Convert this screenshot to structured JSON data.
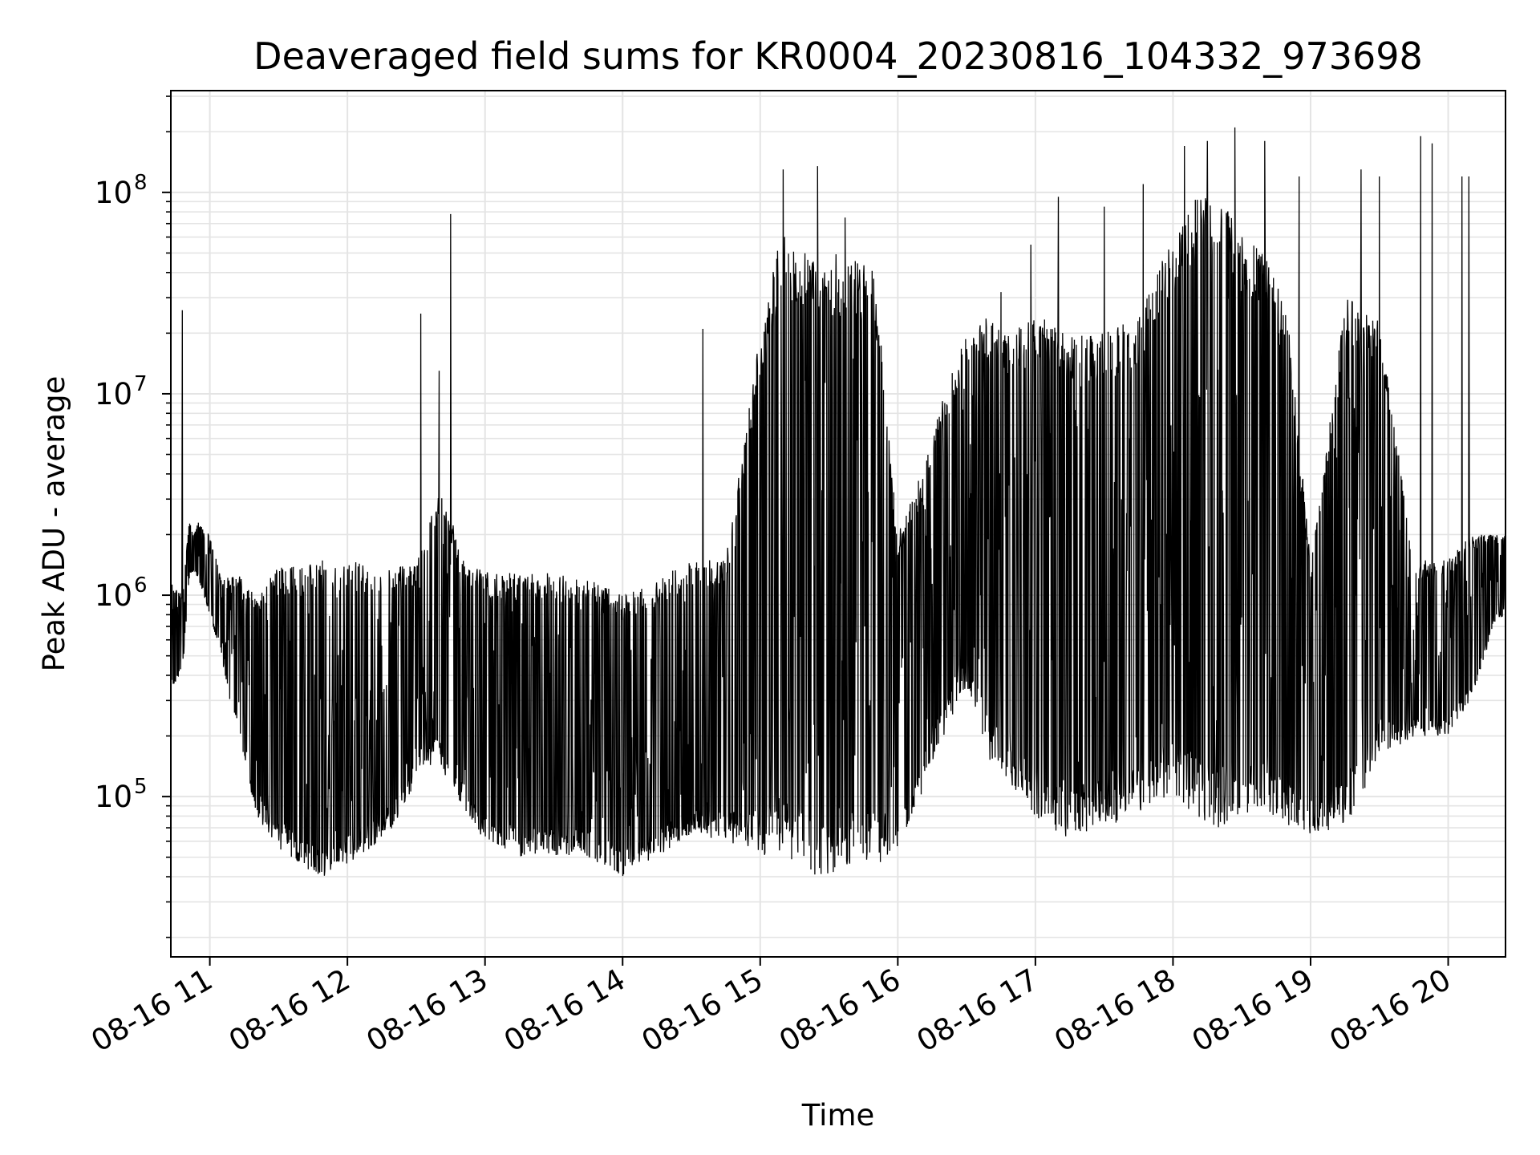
{
  "chart_data": {
    "type": "line",
    "title": "Deaveraged field sums for KR0004_20230816_104332_973698",
    "xlabel": "Time",
    "ylabel": "Peak ADU - average",
    "yscale": "log",
    "ylim": [
      16000,
      320000000
    ],
    "xlim": [
      "2023-08-16 10:43",
      "2023-08-16 20:25"
    ],
    "grid": true,
    "series_color": "#000000",
    "x_ticks": [
      {
        "x": "2023-08-16 11:00",
        "label": "08-16 11"
      },
      {
        "x": "2023-08-16 12:00",
        "label": "08-16 12"
      },
      {
        "x": "2023-08-16 13:00",
        "label": "08-16 13"
      },
      {
        "x": "2023-08-16 14:00",
        "label": "08-16 14"
      },
      {
        "x": "2023-08-16 15:00",
        "label": "08-16 15"
      },
      {
        "x": "2023-08-16 16:00",
        "label": "08-16 16"
      },
      {
        "x": "2023-08-16 17:00",
        "label": "08-16 17"
      },
      {
        "x": "2023-08-16 18:00",
        "label": "08-16 18"
      },
      {
        "x": "2023-08-16 19:00",
        "label": "08-16 19"
      },
      {
        "x": "2023-08-16 20:00",
        "label": "08-16 20"
      }
    ],
    "y_ticks": [
      {
        "value": 100000,
        "base": "10",
        "exp": "5"
      },
      {
        "value": 1000000,
        "base": "10",
        "exp": "6"
      },
      {
        "value": 10000000,
        "base": "10",
        "exp": "7"
      },
      {
        "value": 100000000,
        "base": "10",
        "exp": "8"
      }
    ],
    "series": [
      {
        "x": [
          "2023-08-16 10:43",
          "2023-08-16 10:48",
          "2023-08-16 10:51",
          "2023-08-16 10:53",
          "2023-08-16 10:55",
          "2023-08-16 11:00",
          "2023-08-16 11:05",
          "2023-08-16 11:10",
          "2023-08-16 11:15",
          "2023-08-16 11:20",
          "2023-08-16 11:30",
          "2023-08-16 11:40",
          "2023-08-16 11:50",
          "2023-08-16 12:00",
          "2023-08-16 12:10",
          "2023-08-16 12:20",
          "2023-08-16 12:30",
          "2023-08-16 12:40",
          "2023-08-16 12:45",
          "2023-08-16 12:50",
          "2023-08-16 13:00",
          "2023-08-16 13:15",
          "2023-08-16 13:30",
          "2023-08-16 13:45",
          "2023-08-16 14:00",
          "2023-08-16 14:15",
          "2023-08-16 14:30",
          "2023-08-16 14:45",
          "2023-08-16 15:00",
          "2023-08-16 15:10",
          "2023-08-16 15:20",
          "2023-08-16 15:30",
          "2023-08-16 15:40",
          "2023-08-16 15:50",
          "2023-08-16 16:00",
          "2023-08-16 16:10",
          "2023-08-16 16:20",
          "2023-08-16 16:30",
          "2023-08-16 16:40",
          "2023-08-16 16:50",
          "2023-08-16 17:00",
          "2023-08-16 17:15",
          "2023-08-16 17:30",
          "2023-08-16 17:45",
          "2023-08-16 18:00",
          "2023-08-16 18:10",
          "2023-08-16 18:20",
          "2023-08-16 18:30",
          "2023-08-16 18:40",
          "2023-08-16 18:50",
          "2023-08-16 19:00",
          "2023-08-16 19:15",
          "2023-08-16 19:30",
          "2023-08-16 19:45",
          "2023-08-16 20:00",
          "2023-08-16 20:10",
          "2023-08-16 20:20",
          "2023-08-16 20:25"
        ],
        "low": [
          350000,
          400000,
          1200000,
          1300000,
          1200000,
          800000,
          500000,
          250000,
          150000,
          80000,
          55000,
          45000,
          40000,
          45000,
          55000,
          70000,
          120000,
          150000,
          100000,
          90000,
          60000,
          50000,
          50000,
          50000,
          40000,
          50000,
          65000,
          60000,
          50000,
          50000,
          40000,
          40000,
          45000,
          45000,
          55000,
          100000,
          200000,
          350000,
          150000,
          100000,
          80000,
          60000,
          70000,
          80000,
          100000,
          80000,
          70000,
          80000,
          80000,
          70000,
          65000,
          70000,
          150000,
          200000,
          200000,
          300000,
          700000,
          800000
        ],
        "high": [
          1200000,
          1000000,
          2400000,
          2000000,
          2300000,
          2000000,
          1200000,
          1300000,
          1200000,
          1000000,
          1400000,
          1400000,
          1500000,
          1500000,
          1400000,
          1400000,
          1400000,
          3500000,
          2500000,
          1500000,
          1300000,
          1300000,
          1300000,
          1200000,
          1000000,
          1200000,
          1500000,
          1500000,
          20000000,
          70000000,
          50000000,
          50000000,
          50000000,
          40000000,
          2000000,
          4000000,
          10000000,
          20000000,
          25000000,
          20000000,
          25000000,
          20000000,
          20000000,
          25000000,
          60000000,
          100000000,
          100000000,
          60000000,
          50000000,
          25000000,
          1500000,
          30000000,
          25000000,
          1500000,
          1500000,
          2000000,
          2000000,
          2000000
        ]
      }
    ],
    "spikes": [
      {
        "x": "2023-08-16 10:48",
        "y": 26000000
      },
      {
        "x": "2023-08-16 12:32",
        "y": 25000000
      },
      {
        "x": "2023-08-16 12:40",
        "y": 13000000
      },
      {
        "x": "2023-08-16 12:45",
        "y": 78000000
      },
      {
        "x": "2023-08-16 14:35",
        "y": 21000000
      },
      {
        "x": "2023-08-16 15:10",
        "y": 130000000
      },
      {
        "x": "2023-08-16 15:25",
        "y": 135000000
      },
      {
        "x": "2023-08-16 15:37",
        "y": 75000000
      },
      {
        "x": "2023-08-16 16:45",
        "y": 32000000
      },
      {
        "x": "2023-08-16 16:58",
        "y": 55000000
      },
      {
        "x": "2023-08-16 17:10",
        "y": 95000000
      },
      {
        "x": "2023-08-16 17:30",
        "y": 85000000
      },
      {
        "x": "2023-08-16 17:47",
        "y": 110000000
      },
      {
        "x": "2023-08-16 18:05",
        "y": 170000000
      },
      {
        "x": "2023-08-16 18:15",
        "y": 180000000
      },
      {
        "x": "2023-08-16 18:27",
        "y": 210000000
      },
      {
        "x": "2023-08-16 18:40",
        "y": 180000000
      },
      {
        "x": "2023-08-16 18:55",
        "y": 120000000
      },
      {
        "x": "2023-08-16 19:22",
        "y": 130000000
      },
      {
        "x": "2023-08-16 19:30",
        "y": 120000000
      },
      {
        "x": "2023-08-16 19:48",
        "y": 190000000
      },
      {
        "x": "2023-08-16 19:53",
        "y": 175000000
      },
      {
        "x": "2023-08-16 20:06",
        "y": 120000000
      },
      {
        "x": "2023-08-16 20:09",
        "y": 120000000
      }
    ]
  }
}
